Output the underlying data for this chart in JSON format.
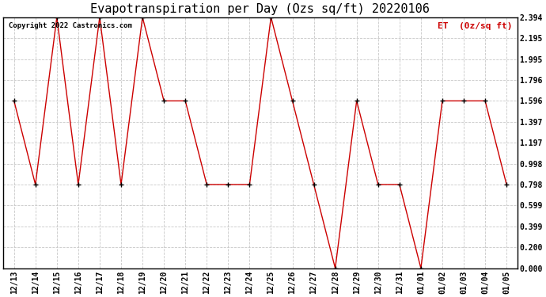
{
  "title": "Evapotranspiration per Day (Ozs sq/ft) 20220106",
  "legend_label": "ET  (0z/sq ft)",
  "copyright_text": "Copyright 2022 Castronics.com",
  "dates": [
    "12/13",
    "12/14",
    "12/15",
    "12/16",
    "12/17",
    "12/18",
    "12/19",
    "12/20",
    "12/21",
    "12/22",
    "12/23",
    "12/24",
    "12/25",
    "12/26",
    "12/27",
    "12/28",
    "12/29",
    "12/30",
    "12/31",
    "01/01",
    "01/02",
    "01/03",
    "01/04",
    "01/05"
  ],
  "values": [
    1.596,
    0.798,
    2.394,
    0.798,
    2.394,
    0.798,
    2.394,
    1.596,
    1.596,
    0.798,
    0.798,
    0.798,
    2.394,
    1.596,
    0.798,
    0.0,
    1.596,
    0.798,
    0.798,
    0.0,
    1.596,
    1.596,
    1.596,
    0.798
  ],
  "ylim": [
    0.0,
    2.394
  ],
  "yticks": [
    0.0,
    0.2,
    0.399,
    0.599,
    0.798,
    0.998,
    1.197,
    1.397,
    1.596,
    1.796,
    1.995,
    2.195,
    2.394
  ],
  "line_color": "#cc0000",
  "marker_color": "#000000",
  "grid_color": "#c8c8c8",
  "bg_color": "#ffffff",
  "title_fontsize": 11,
  "legend_color": "#cc0000",
  "tick_fontsize": 7,
  "copyright_fontsize": 6.5
}
